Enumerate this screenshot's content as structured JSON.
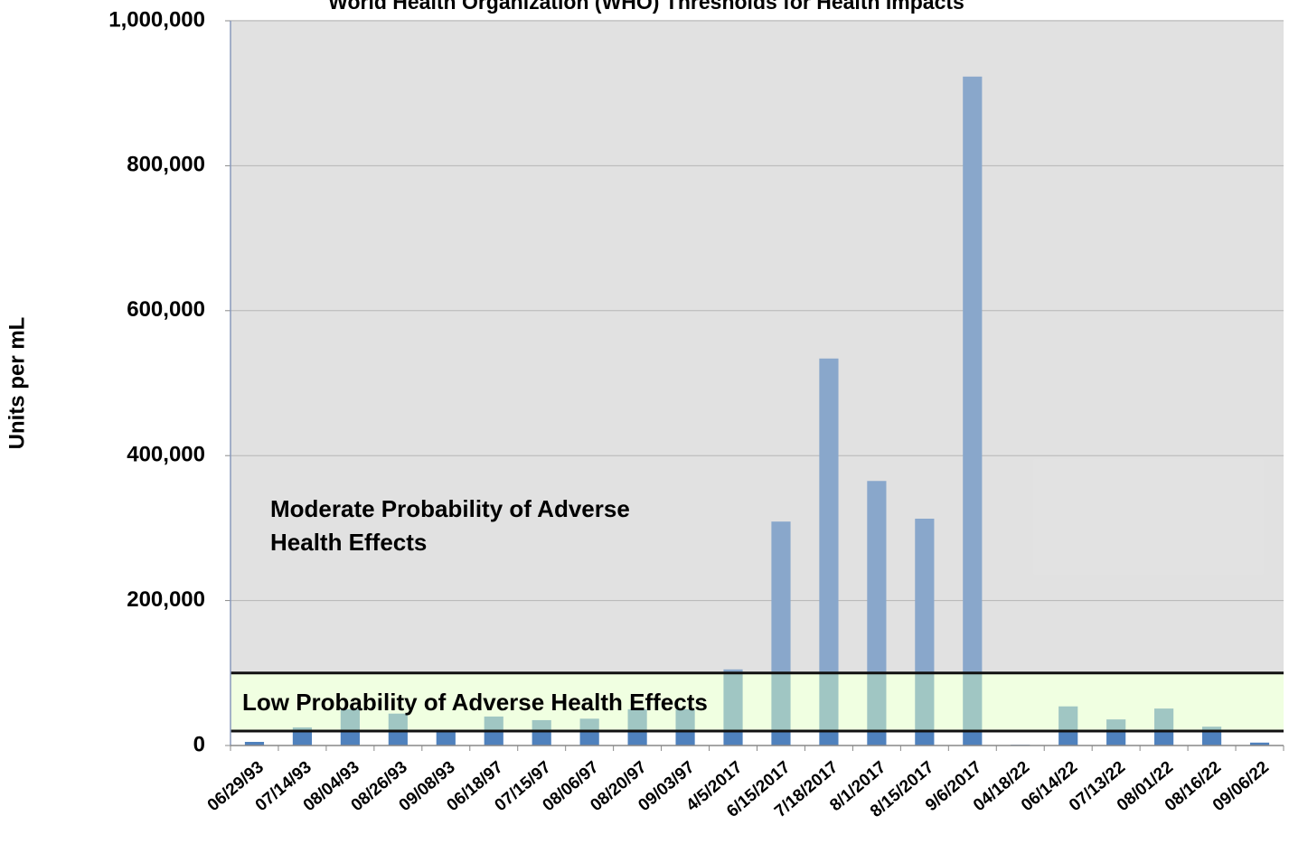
{
  "chart_data": {
    "type": "bar",
    "title": "World Health Organization (WHO) Thresholds for Health Impacts",
    "ylabel": "Units per mL",
    "categories": [
      "06/29/93",
      "07/14/93",
      "08/04/93",
      "08/26/93",
      "09/08/93",
      "06/18/97",
      "07/15/97",
      "08/06/97",
      "08/20/97",
      "09/03/97",
      "4/5/2017",
      "6/15/2017",
      "7/18/2017",
      "8/1/2017",
      "8/15/2017",
      "9/6/2017",
      "04/18/22",
      "06/14/22",
      "07/13/22",
      "08/01/22",
      "08/16/22",
      "09/06/22"
    ],
    "values": [
      5000,
      25000,
      50000,
      44000,
      20000,
      40000,
      35000,
      37000,
      50000,
      50000,
      105000,
      309000,
      534000,
      365000,
      313000,
      923000,
      1000,
      54000,
      36000,
      51000,
      26000,
      4000
    ],
    "color": "#4f81bd",
    "ylim": [
      0,
      1000000
    ],
    "yticks": [
      0,
      {
        "value": 200000,
        "label": "200,000"
      },
      {
        "value": 400000,
        "label": "400,000"
      },
      {
        "value": 600000,
        "label": "600,000"
      },
      {
        "value": 800000,
        "label": "800,000"
      },
      {
        "value": 1000000,
        "label": "1,000,000"
      }
    ],
    "grid": true,
    "thresholds": [
      20000,
      100000
    ],
    "annotations": {
      "moderate": [
        "Moderate Probability of Adverse",
        "Health Effects"
      ],
      "low": "Low Probability of Adverse Health Effects"
    }
  }
}
